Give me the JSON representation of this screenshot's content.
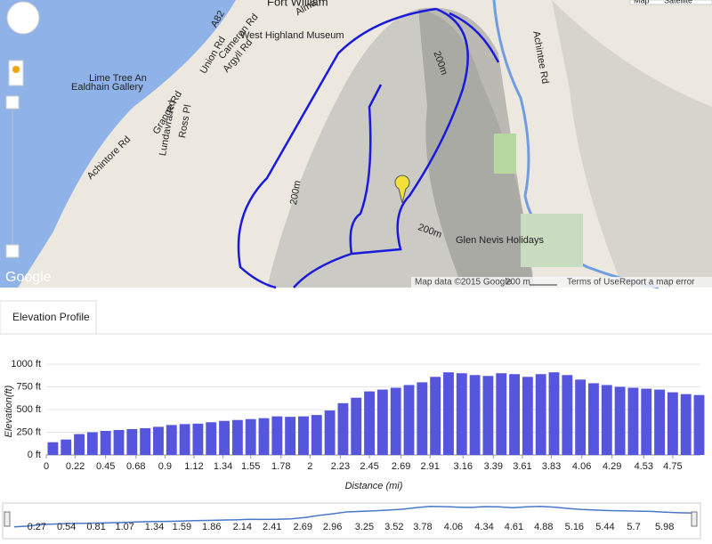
{
  "map": {
    "labels": [
      "Fort William",
      "Alma Rd",
      "A82",
      "West Highland Museum",
      "Cameron Rd",
      "Argyll Rd",
      "Union Rd",
      "Lime Tree An",
      "Ealdhain Gallery",
      "Grange Rd",
      "Lundavra Rd",
      "Ross Pl",
      "Achintore Rd",
      "Achintee Rd",
      "Glen Nevis Holidays",
      "200m",
      "200m",
      "200m"
    ],
    "attribution": "Map data ©2015 Google",
    "scale": "200 m",
    "terms": "Terms of Use",
    "report": "Report a map error",
    "logo": "Google",
    "map_type": [
      "Map",
      "Satellite"
    ]
  },
  "tab": "Elevation Profile",
  "chart_data": {
    "type": "bar",
    "ylabel": "Elevation(ft)",
    "xlabel": "Distance (mi)",
    "color": "#5555dd",
    "x": [
      0.05,
      0.15,
      0.25,
      0.35,
      0.45,
      0.55,
      0.65,
      0.75,
      0.85,
      0.95,
      1.05,
      1.15,
      1.25,
      1.35,
      1.45,
      1.55,
      1.65,
      1.75,
      1.85,
      1.95,
      2.05,
      2.15,
      2.25,
      2.35,
      2.45,
      2.55,
      2.65,
      2.75,
      2.85,
      2.95,
      3.05,
      3.15,
      3.25,
      3.35,
      3.45,
      3.55,
      3.65,
      3.75,
      3.85,
      3.95,
      4.05,
      4.15,
      4.25,
      4.35,
      4.45,
      4.55,
      4.65,
      4.75,
      4.85,
      4.95
    ],
    "values": [
      140,
      170,
      230,
      250,
      265,
      275,
      285,
      295,
      310,
      330,
      340,
      345,
      360,
      375,
      385,
      395,
      405,
      425,
      420,
      425,
      440,
      490,
      570,
      630,
      700,
      720,
      740,
      770,
      800,
      860,
      910,
      900,
      880,
      870,
      900,
      890,
      860,
      890,
      910,
      880,
      830,
      790,
      770,
      750,
      740,
      730,
      720,
      690,
      670,
      660
    ],
    "xlim": [
      0,
      4.96
    ],
    "xticks": [
      0,
      0.22,
      0.45,
      0.68,
      0.9,
      1.12,
      1.34,
      1.55,
      1.78,
      2,
      2.23,
      2.45,
      2.69,
      2.91,
      3.16,
      3.39,
      3.61,
      3.83,
      4.06,
      4.29,
      4.53,
      4.75
    ],
    "ylim": [
      0,
      1000
    ],
    "yticks": [
      {
        "value": 0,
        "label": "0 ft"
      },
      {
        "value": 250,
        "label": "250 ft"
      },
      {
        "value": 500,
        "label": "500 ft"
      },
      {
        "value": 750,
        "label": "750 ft"
      },
      {
        "value": 1000,
        "label": "1000 ft"
      }
    ],
    "grid": true
  },
  "overview": {
    "xlim": [
      0,
      6.25
    ],
    "ticks": [
      0.27,
      0.54,
      0.81,
      1.07,
      1.34,
      1.59,
      1.86,
      2.14,
      2.41,
      2.69,
      2.96,
      3.25,
      3.52,
      3.78,
      4.06,
      4.34,
      4.61,
      4.88,
      5.16,
      5.44,
      5.7,
      5.98
    ]
  }
}
